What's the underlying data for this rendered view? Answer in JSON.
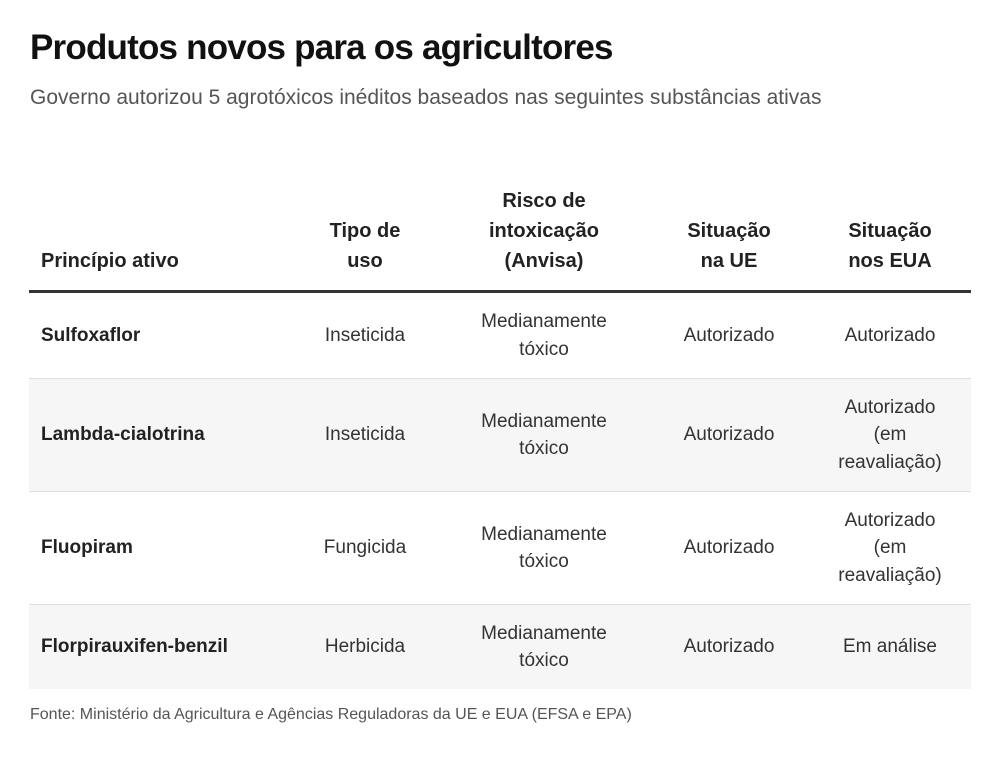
{
  "title": "Produtos novos para os agricultores",
  "subtitle": "Governo autorizou 5 agrotóxicos inéditos baseados nas seguintes substâncias ativas",
  "table": {
    "headers": {
      "principio": "Princípio ativo",
      "tipo": "Tipo de uso",
      "risco": "Risco de intoxicação (Anvisa)",
      "ue": "Situação na UE",
      "eua": "Situação nos EUA"
    },
    "rows": [
      {
        "principio": "Sulfoxaflor",
        "tipo": "Inseticida",
        "risco": "Medianamente tóxico",
        "ue": "Autorizado",
        "eua": "Autorizado"
      },
      {
        "principio": "Lambda-cialotrina",
        "tipo": "Inseticida",
        "risco": "Medianamente tóxico",
        "ue": "Autorizado",
        "eua": "Autorizado (em reavaliação)"
      },
      {
        "principio": "Fluopiram",
        "tipo": "Fungicida",
        "risco": "Medianamente tóxico",
        "ue": "Autorizado",
        "eua": "Autorizado (em reavaliação)"
      },
      {
        "principio": "Florpirauxifen-benzil",
        "tipo": "Herbicida",
        "risco": "Medianamente tóxico",
        "ue": "Autorizado",
        "eua": "Em análise"
      }
    ]
  },
  "source": "Fonte: Ministério da Agricultura e Agências Reguladoras da UE e EUA (EFSA e EPA)"
}
